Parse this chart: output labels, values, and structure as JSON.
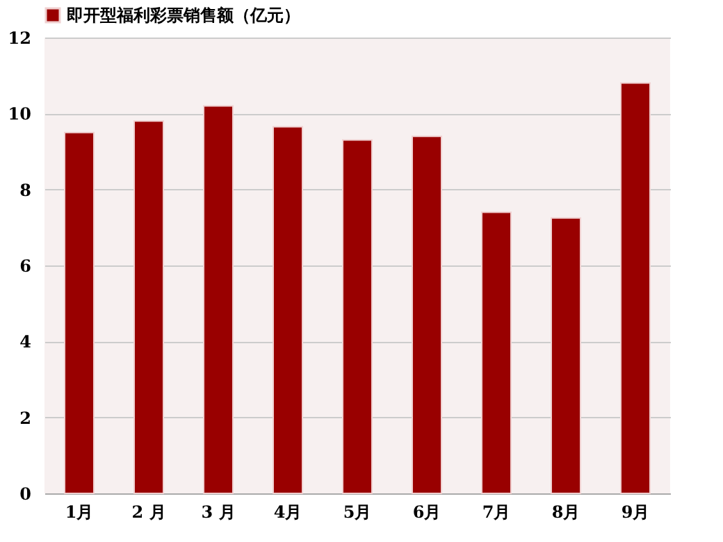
{
  "chart_data": {
    "type": "bar",
    "categories": [
      "1月",
      "2 月",
      "3 月",
      "4月",
      "5月",
      "6月",
      "7月",
      "8月",
      "9月"
    ],
    "series": [
      {
        "name": "即开型福利彩票销售额（亿元）",
        "color": "#990000",
        "values": [
          9.5,
          9.8,
          10.2,
          9.65,
          9.3,
          9.4,
          7.4,
          7.25,
          10.8
        ]
      }
    ],
    "ylim": [
      0,
      12
    ],
    "yticks": [
      0,
      2,
      4,
      6,
      8,
      10,
      12
    ],
    "grid": "y",
    "legend": "top"
  }
}
